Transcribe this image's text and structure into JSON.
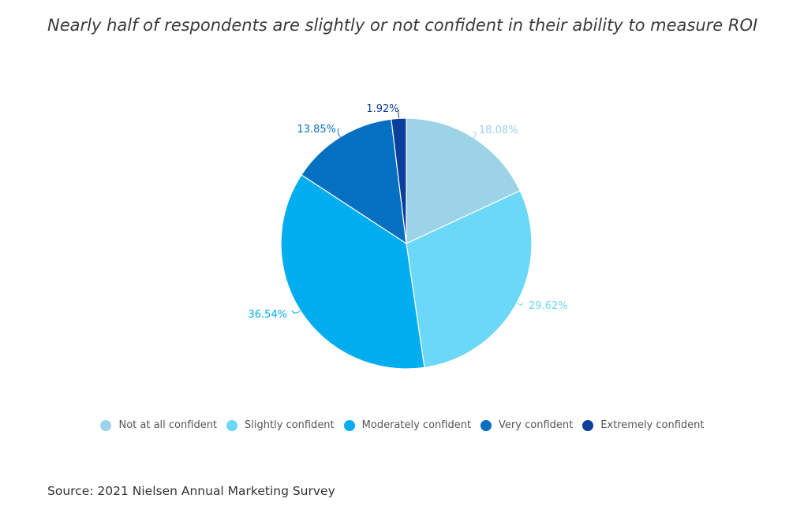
{
  "title": "Nearly half of respondents are slightly or not confident in their ability to measure ROI",
  "source": "Source: 2021 Nielsen Annual Marketing Survey",
  "chart_data": {
    "type": "pie",
    "title": "Nearly half of respondents are slightly or not confident in their ability to measure ROI",
    "categories": [
      "Not at all confident",
      "Slightly confident",
      "Moderately confident",
      "Very confident",
      "Extremely confident"
    ],
    "values": [
      18.08,
      29.62,
      36.54,
      13.85,
      1.92
    ],
    "labels": [
      "18.08%",
      "29.62%",
      "36.54%",
      "13.85%",
      "1.92%"
    ],
    "colors": [
      "#9dd3e6",
      "#6cd8f8",
      "#00adef",
      "#0570c2",
      "#0a3f9c"
    ],
    "legend_position": "bottom"
  }
}
